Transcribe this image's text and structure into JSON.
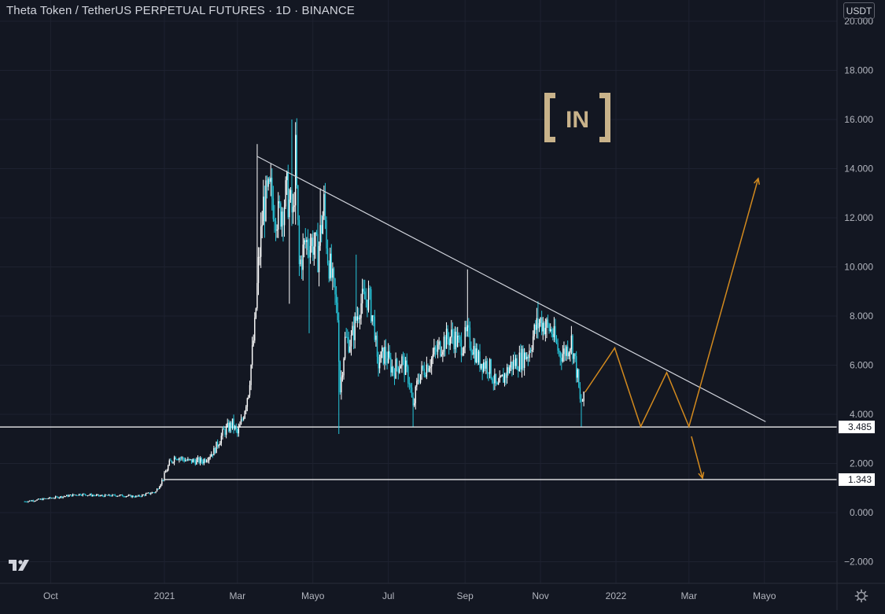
{
  "header": {
    "title": "Theta Token / TetherUS PERPETUAL FUTURES · 1D · BINANCE",
    "currency": "USDT"
  },
  "watermark": {
    "text": "IN",
    "icon": "beincrypto-logo"
  },
  "icons": {
    "brand": "tradingview-logo-icon",
    "settings": "gear-icon"
  },
  "colors": {
    "background": "#131722",
    "candle_up": "#ffffff",
    "candle_down": "#26c6da",
    "trendline": "#d1d4dc",
    "projection": "#d38a1e",
    "watermark": "#c8b28a"
  },
  "chart_data": {
    "type": "candlestick",
    "title": "Theta Token / TetherUS PERPETUAL FUTURES · 1D · BINANCE",
    "xlabel": "",
    "ylabel": "",
    "ylim": [
      -2.6,
      20.5
    ],
    "y_ticks": [
      -2.0,
      0.0,
      2.0,
      4.0,
      6.0,
      8.0,
      10.0,
      12.0,
      14.0,
      16.0,
      18.0,
      20.0
    ],
    "y_tick_labels": [
      "−2.000",
      "0.000",
      "2.000",
      "4.000",
      "6.000",
      "8.000",
      "10.000",
      "12.000",
      "14.000",
      "16.000",
      "18.000",
      "20.000"
    ],
    "x_ticks": [
      {
        "label": "Oct",
        "date": "2020-10-01"
      },
      {
        "label": "2021",
        "date": "2021-01-01"
      },
      {
        "label": "Mar",
        "date": "2021-03-01"
      },
      {
        "label": "Mayo",
        "date": "2021-05-01"
      },
      {
        "label": "Jul",
        "date": "2021-07-01"
      },
      {
        "label": "Sep",
        "date": "2021-09-01"
      },
      {
        "label": "Nov",
        "date": "2021-11-01"
      },
      {
        "label": "2022",
        "date": "2022-01-01"
      },
      {
        "label": "Mar",
        "date": "2022-03-01"
      },
      {
        "label": "Mayo",
        "date": "2022-05-01"
      }
    ],
    "series": [
      {
        "type": "daily-close",
        "start_date": "2020-09-10",
        "points": [
          [
            "2020-09-10",
            0.45
          ],
          [
            "2020-09-25",
            0.55
          ],
          [
            "2020-10-10",
            0.65
          ],
          [
            "2020-10-25",
            0.75
          ],
          [
            "2020-11-10",
            0.68
          ],
          [
            "2020-11-25",
            0.7
          ],
          [
            "2020-12-10",
            0.65
          ],
          [
            "2020-12-25",
            0.85
          ],
          [
            "2020-12-31",
            1.4
          ],
          [
            "2021-01-05",
            2.0
          ],
          [
            "2021-01-10",
            2.3
          ],
          [
            "2021-01-20",
            2.1
          ],
          [
            "2021-02-01",
            2.1
          ],
          [
            "2021-02-10",
            2.5
          ],
          [
            "2021-02-18",
            3.3
          ],
          [
            "2021-02-25",
            3.6
          ],
          [
            "2021-03-01",
            3.2
          ],
          [
            "2021-03-05",
            3.8
          ],
          [
            "2021-03-10",
            5.0
          ],
          [
            "2021-03-15",
            7.5
          ],
          [
            "2021-03-18",
            10.0
          ],
          [
            "2021-03-22",
            12.5
          ],
          [
            "2021-03-28",
            13.0
          ],
          [
            "2021-04-03",
            12.0
          ],
          [
            "2021-04-10",
            13.0
          ],
          [
            "2021-04-15",
            12.0
          ],
          [
            "2021-04-17",
            14.5
          ],
          [
            "2021-04-20",
            10.0
          ],
          [
            "2021-04-25",
            11.0
          ],
          [
            "2021-05-01",
            11.0
          ],
          [
            "2021-05-05",
            10.5
          ],
          [
            "2021-05-10",
            12.5
          ],
          [
            "2021-05-13",
            10.5
          ],
          [
            "2021-05-18",
            9.0
          ],
          [
            "2021-05-21",
            8.0
          ],
          [
            "2021-05-23",
            5.0
          ],
          [
            "2021-05-27",
            7.0
          ],
          [
            "2021-06-01",
            7.0
          ],
          [
            "2021-06-08",
            8.5
          ],
          [
            "2021-06-15",
            8.8
          ],
          [
            "2021-06-20",
            7.5
          ],
          [
            "2021-06-22",
            6.0
          ],
          [
            "2021-06-28",
            6.5
          ],
          [
            "2021-07-05",
            5.8
          ],
          [
            "2021-07-12",
            6.2
          ],
          [
            "2021-07-18",
            5.4
          ],
          [
            "2021-07-21",
            4.2
          ],
          [
            "2021-07-25",
            5.5
          ],
          [
            "2021-08-01",
            6.0
          ],
          [
            "2021-08-08",
            6.5
          ],
          [
            "2021-08-15",
            7.0
          ],
          [
            "2021-08-22",
            7.2
          ],
          [
            "2021-08-28",
            6.8
          ],
          [
            "2021-09-03",
            7.2
          ],
          [
            "2021-09-07",
            6.8
          ],
          [
            "2021-09-12",
            6.2
          ],
          [
            "2021-09-20",
            6.0
          ],
          [
            "2021-09-27",
            5.0
          ],
          [
            "2021-10-02",
            5.5
          ],
          [
            "2021-10-08",
            6.0
          ],
          [
            "2021-10-15",
            6.2
          ],
          [
            "2021-10-22",
            6.5
          ],
          [
            "2021-10-28",
            7.5
          ],
          [
            "2021-11-01",
            7.8
          ],
          [
            "2021-11-05",
            7.6
          ],
          [
            "2021-11-10",
            7.4
          ],
          [
            "2021-11-16",
            6.5
          ],
          [
            "2021-11-20",
            6.5
          ],
          [
            "2021-11-26",
            7.0
          ],
          [
            "2021-12-01",
            5.5
          ],
          [
            "2021-12-03",
            4.5
          ],
          [
            "2021-12-06",
            4.6
          ]
        ]
      },
      {
        "type": "trendline",
        "points": [
          [
            "2021-03-17",
            14.5
          ],
          [
            "2022-05-02",
            3.7
          ]
        ]
      },
      {
        "type": "projection",
        "points": [
          [
            "2021-12-07",
            4.9
          ],
          [
            "2021-12-31",
            6.7
          ],
          [
            "2022-01-21",
            3.5
          ],
          [
            "2022-02-11",
            5.7
          ],
          [
            "2022-03-01",
            3.5
          ],
          [
            "2022-04-26",
            13.6
          ]
        ]
      },
      {
        "type": "projection-down",
        "points": [
          [
            "2022-03-03",
            3.1
          ],
          [
            "2022-03-12",
            1.4
          ]
        ]
      }
    ],
    "levels": [
      {
        "value": 3.485,
        "label": "3.485"
      },
      {
        "value": 1.343,
        "label": "1.343"
      }
    ],
    "grid": true,
    "legend": "none"
  }
}
